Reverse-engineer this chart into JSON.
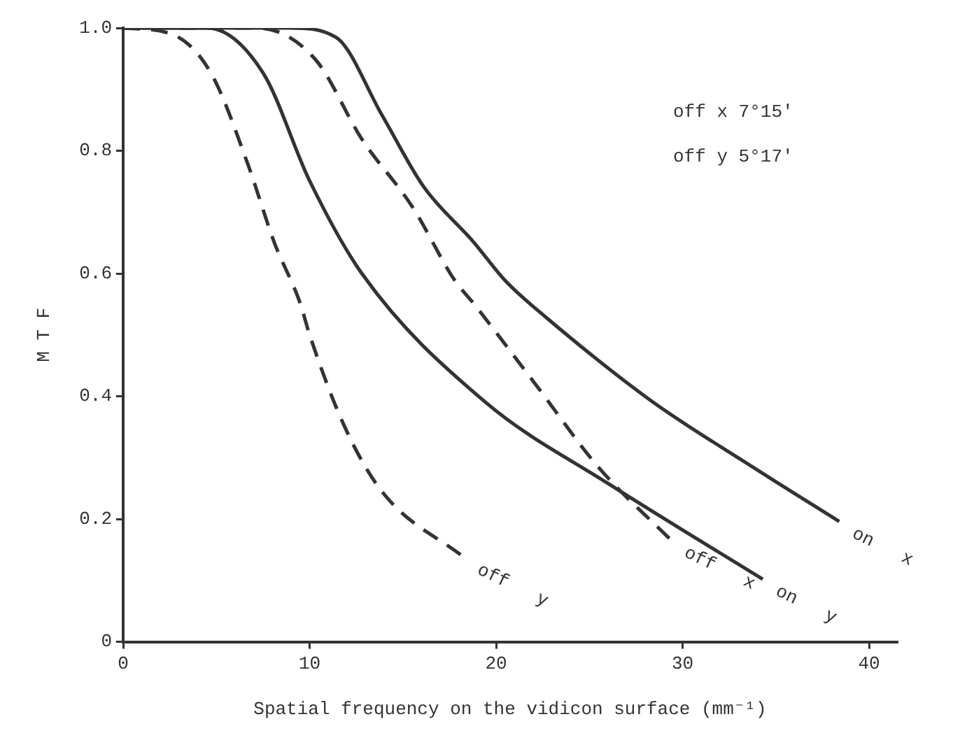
{
  "chart_data": {
    "type": "line",
    "xlabel": "Spatial frequency on the vidicon surface (mm⁻¹)",
    "ylabel": "M T F",
    "xlim": [
      0,
      41.5
    ],
    "ylim": [
      0,
      1
    ],
    "xticks": [
      0,
      10,
      20,
      30,
      40
    ],
    "yticks": [
      0,
      0.2,
      0.4,
      0.6,
      {
        "value": 1,
        "label": "1.0"
      },
      0.8
    ],
    "grid": false,
    "legend": false,
    "marker": "none",
    "annotations": [
      "off x 7°15'",
      "off y 5°17'"
    ],
    "series": [
      {
        "name": "on x",
        "color": "#333333",
        "line_style": "solid",
        "x": [
          0,
          5,
          8.9,
          11.4,
          13.9,
          16.1,
          18.8,
          20.5,
          22.7,
          28.3,
          33.8,
          38.4
        ],
        "values": [
          1,
          1,
          1,
          0.985,
          0.857,
          0.742,
          0.651,
          0.588,
          0.528,
          0.393,
          0.284,
          0.196
        ]
      },
      {
        "name": "off x",
        "color": "#333333",
        "line_style": "dashed",
        "x": [
          0,
          5,
          7.2,
          10.3,
          12.8,
          15.5,
          17.8,
          18.8,
          22.2,
          25.5,
          29.4
        ],
        "values": [
          1,
          1,
          1,
          0.949,
          0.819,
          0.709,
          0.588,
          0.551,
          0.416,
          0.284,
          0.165
        ]
      },
      {
        "name": "on y",
        "color": "#333333",
        "line_style": "solid",
        "x": [
          0,
          4.5,
          7.5,
          10,
          12.8,
          19.4,
          26,
          34.3
        ],
        "values": [
          1,
          1,
          0.927,
          0.751,
          0.6,
          0.391,
          0.258,
          0.102
        ]
      },
      {
        "name": "off y",
        "color": "#333333",
        "line_style": "dashed",
        "x": [
          0,
          2.6,
          4.7,
          6.7,
          8.1,
          9.5,
          10,
          11.9,
          13.9,
          18.3
        ],
        "values": [
          1,
          0.99,
          0.927,
          0.777,
          0.651,
          0.551,
          0.5,
          0.349,
          0.244,
          0.137
        ]
      }
    ]
  }
}
